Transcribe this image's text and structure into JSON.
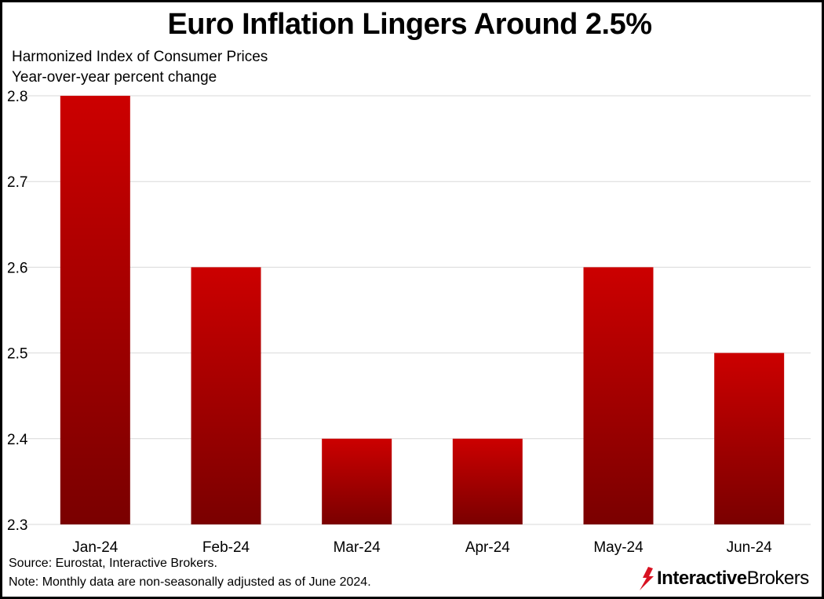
{
  "chart_data": {
    "type": "bar",
    "title": "Euro Inflation Lingers Around 2.5%",
    "subtitle": [
      "Harmonized Index of Consumer Prices",
      "Year-over-year percent change"
    ],
    "categories": [
      "Jan-24",
      "Feb-24",
      "Mar-24",
      "Apr-24",
      "May-24",
      "Jun-24"
    ],
    "values": [
      2.8,
      2.6,
      2.4,
      2.4,
      2.6,
      2.5
    ],
    "ylim": [
      2.3,
      2.8
    ],
    "yticks": [
      "2.3",
      "2.4",
      "2.5",
      "2.6",
      "2.7",
      "2.8"
    ],
    "grid": true,
    "legend": "none",
    "bar_color_top": "#cc0000",
    "bar_color_bottom": "#7a0000",
    "grid_color": "#d9d9d9"
  },
  "footer": {
    "source": "Source: Eurostat, Interactive Brokers.",
    "note": "Note: Monthly data are non-seasonally adjusted as of June 2024."
  },
  "logo": {
    "bold": "Interactive",
    "regular": "Brokers",
    "icon": "interactive-brokers-flame-icon",
    "color": "#d81222"
  }
}
